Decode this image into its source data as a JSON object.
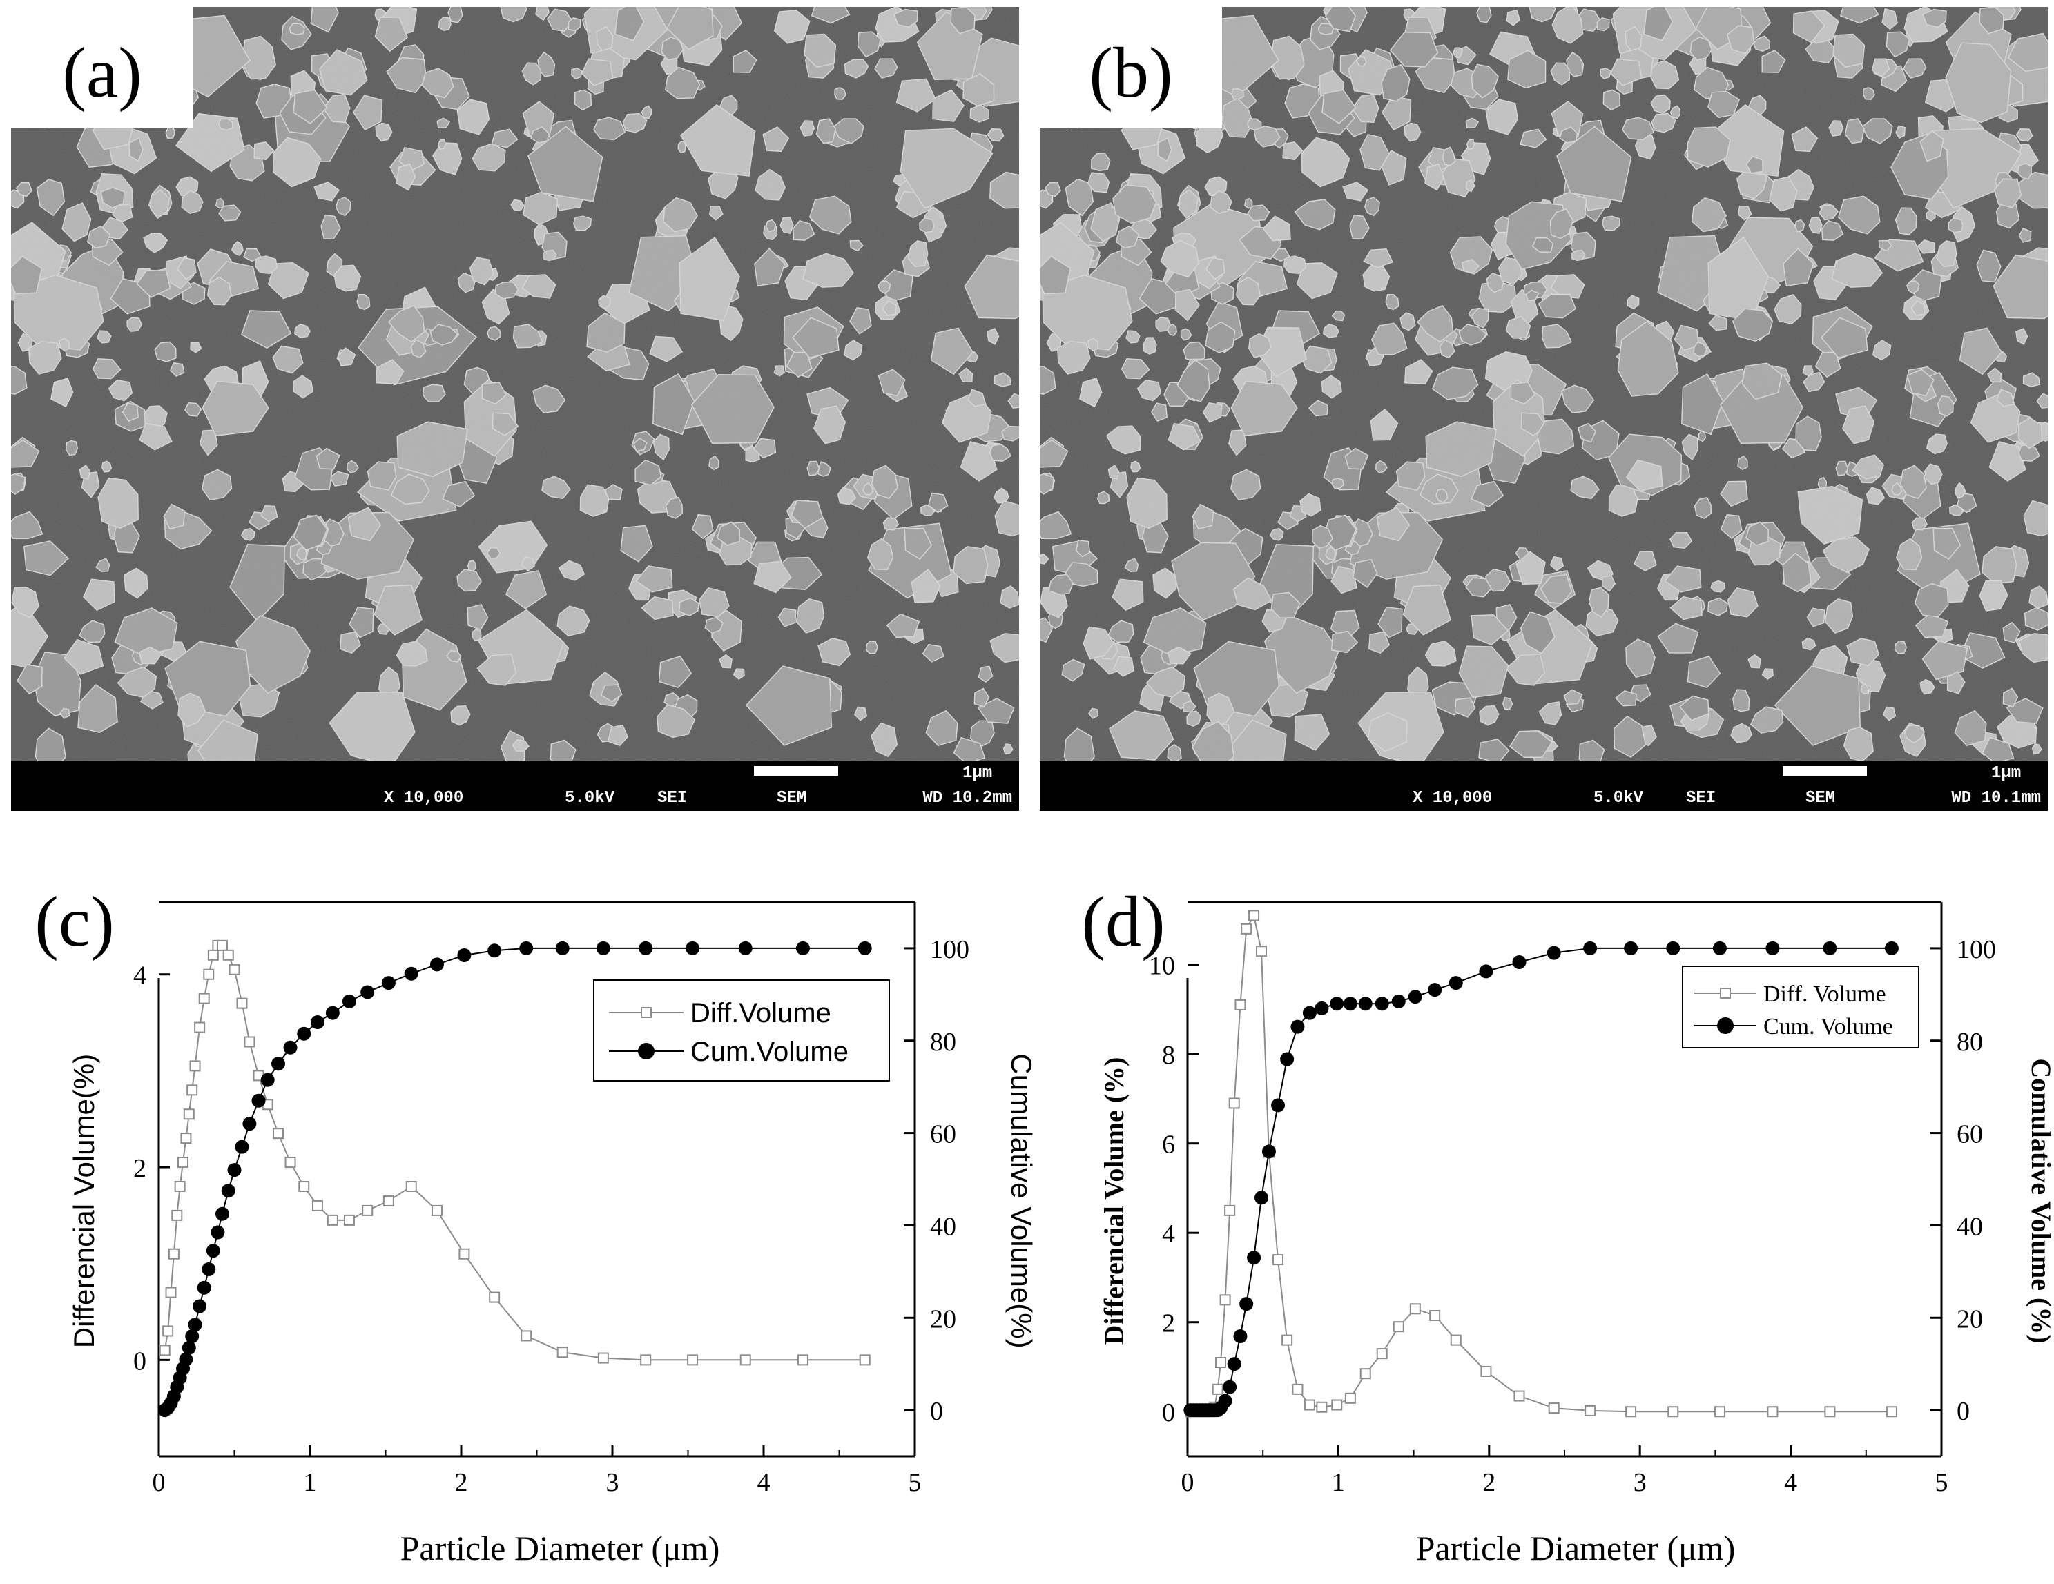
{
  "panels": {
    "a": {
      "label": "(a)",
      "info": {
        "magnification": "X 10,000",
        "voltage": "5.0kV",
        "detector": "SEI",
        "mode": "SEM",
        "scale": "1μm",
        "wd": "WD 10.2mm"
      }
    },
    "b": {
      "label": "(b)",
      "info": {
        "magnification": "X 10,000",
        "voltage": "5.0kV",
        "detector": "SEI",
        "mode": "SEM",
        "scale": "1μm",
        "wd": "WD 10.1mm"
      }
    },
    "c": {
      "label": "(c)"
    },
    "d": {
      "label": "(d)"
    }
  },
  "colors": {
    "diff": "#8c8c8c",
    "cum": "#000000",
    "sem_bg": "#5f5f5f",
    "particle": "#a8a8a8"
  },
  "chart_data": [
    {
      "id": "c",
      "type": "line",
      "xlabel": "Particle Diameter (μm)",
      "ylabel": "Differencial Volume(%)",
      "y2label": "Cumulative Volume(%)",
      "xlim": [
        0,
        5
      ],
      "ylim": [
        -1,
        4.75
      ],
      "y2lim": [
        -10,
        110
      ],
      "xticks": [
        "0",
        "1",
        "2",
        "3",
        "4",
        "5"
      ],
      "yticks": [
        "0",
        "2",
        "4"
      ],
      "y2ticks": [
        "0",
        "20",
        "40",
        "60",
        "80",
        "100"
      ],
      "legend_position": "top-right",
      "series": [
        {
          "name": "Diff.Volume",
          "axis": "left",
          "marker": "open-square",
          "x": [
            0.04,
            0.06,
            0.08,
            0.1,
            0.12,
            0.14,
            0.16,
            0.18,
            0.2,
            0.22,
            0.24,
            0.27,
            0.3,
            0.33,
            0.36,
            0.39,
            0.42,
            0.46,
            0.5,
            0.55,
            0.6,
            0.66,
            0.72,
            0.79,
            0.87,
            0.96,
            1.05,
            1.15,
            1.26,
            1.38,
            1.52,
            1.67,
            1.84,
            2.02,
            2.22,
            2.43,
            2.67,
            2.94,
            3.22,
            3.53,
            3.88,
            4.26,
            4.67
          ],
          "y": [
            0.1,
            0.3,
            0.7,
            1.1,
            1.5,
            1.8,
            2.05,
            2.3,
            2.55,
            2.8,
            3.05,
            3.45,
            3.75,
            4.0,
            4.2,
            4.3,
            4.3,
            4.2,
            4.05,
            3.7,
            3.3,
            2.95,
            2.65,
            2.35,
            2.05,
            1.8,
            1.6,
            1.45,
            1.45,
            1.55,
            1.65,
            1.8,
            1.55,
            1.1,
            0.65,
            0.25,
            0.08,
            0.02,
            0,
            0,
            0,
            0,
            0
          ]
        },
        {
          "name": "Cum.Volume",
          "axis": "right",
          "marker": "filled-circle",
          "x": [
            0.04,
            0.06,
            0.08,
            0.1,
            0.12,
            0.14,
            0.16,
            0.18,
            0.2,
            0.22,
            0.24,
            0.27,
            0.3,
            0.33,
            0.36,
            0.39,
            0.42,
            0.46,
            0.5,
            0.55,
            0.6,
            0.66,
            0.72,
            0.79,
            0.87,
            0.96,
            1.05,
            1.15,
            1.26,
            1.38,
            1.52,
            1.67,
            1.84,
            2.02,
            2.22,
            2.43,
            2.67,
            2.94,
            3.22,
            3.53,
            3.88,
            4.26,
            4.67
          ],
          "y": [
            0,
            0.5,
            1.5,
            3,
            5,
            7,
            9,
            11,
            13.5,
            16,
            18.5,
            22.5,
            26.5,
            30.5,
            34.5,
            38.5,
            42.5,
            47.5,
            52,
            57,
            62,
            67,
            71.5,
            75,
            78.5,
            81.5,
            84,
            86,
            88.5,
            90.5,
            92.5,
            94.5,
            96.5,
            98.5,
            99.5,
            100,
            100,
            100,
            100,
            100,
            100,
            100,
            100
          ]
        }
      ]
    },
    {
      "id": "d",
      "type": "line",
      "xlabel": "Particle Diameter (μm)",
      "ylabel": "Differencial Volume (%)",
      "y2label": "Comulative Volume (%)",
      "xlim": [
        0,
        5
      ],
      "ylim": [
        -1,
        11.4
      ],
      "y2lim": [
        -10,
        110
      ],
      "xticks": [
        "0",
        "1",
        "2",
        "3",
        "4",
        "5"
      ],
      "yticks": [
        "0",
        "2",
        "4",
        "6",
        "8",
        "10"
      ],
      "y2ticks": [
        "0",
        "20",
        "40",
        "60",
        "80",
        "100"
      ],
      "legend_position": "top-right",
      "series": [
        {
          "name": "Diff. Volume",
          "axis": "left",
          "marker": "open-square",
          "x": [
            0.02,
            0.04,
            0.06,
            0.08,
            0.1,
            0.12,
            0.14,
            0.16,
            0.18,
            0.2,
            0.22,
            0.25,
            0.28,
            0.31,
            0.35,
            0.39,
            0.44,
            0.49,
            0.54,
            0.6,
            0.66,
            0.73,
            0.81,
            0.89,
            0.99,
            1.08,
            1.18,
            1.29,
            1.4,
            1.51,
            1.64,
            1.78,
            1.98,
            2.2,
            2.43,
            2.67,
            2.94,
            3.22,
            3.53,
            3.88,
            4.26,
            4.67
          ],
          "y": [
            0,
            0,
            0,
            0,
            0,
            0,
            0,
            0,
            0.1,
            0.5,
            1.1,
            2.5,
            4.5,
            6.9,
            9.1,
            10.8,
            11.1,
            10.3,
            5.8,
            3.4,
            1.6,
            0.5,
            0.15,
            0.1,
            0.15,
            0.3,
            0.85,
            1.3,
            1.9,
            2.3,
            2.15,
            1.6,
            0.9,
            0.35,
            0.08,
            0.02,
            0,
            0,
            0,
            0,
            0,
            0
          ]
        },
        {
          "name": "Cum. Volume",
          "axis": "right",
          "marker": "filled-circle",
          "x": [
            0.02,
            0.04,
            0.06,
            0.08,
            0.1,
            0.12,
            0.14,
            0.16,
            0.18,
            0.2,
            0.22,
            0.25,
            0.28,
            0.31,
            0.35,
            0.39,
            0.44,
            0.49,
            0.54,
            0.6,
            0.66,
            0.73,
            0.81,
            0.89,
            0.99,
            1.08,
            1.18,
            1.29,
            1.4,
            1.51,
            1.64,
            1.78,
            1.98,
            2.2,
            2.43,
            2.67,
            2.94,
            3.22,
            3.53,
            3.88,
            4.26,
            4.67
          ],
          "y": [
            0,
            0,
            0,
            0,
            0,
            0,
            0,
            0,
            0,
            0,
            0.5,
            2,
            5,
            10,
            16,
            23,
            33,
            46,
            56,
            66,
            76,
            83,
            86,
            87,
            88,
            88,
            88,
            88,
            88.5,
            89.5,
            91,
            92.5,
            95,
            97,
            99,
            100,
            100,
            100,
            100,
            100,
            100,
            100
          ]
        }
      ]
    }
  ]
}
